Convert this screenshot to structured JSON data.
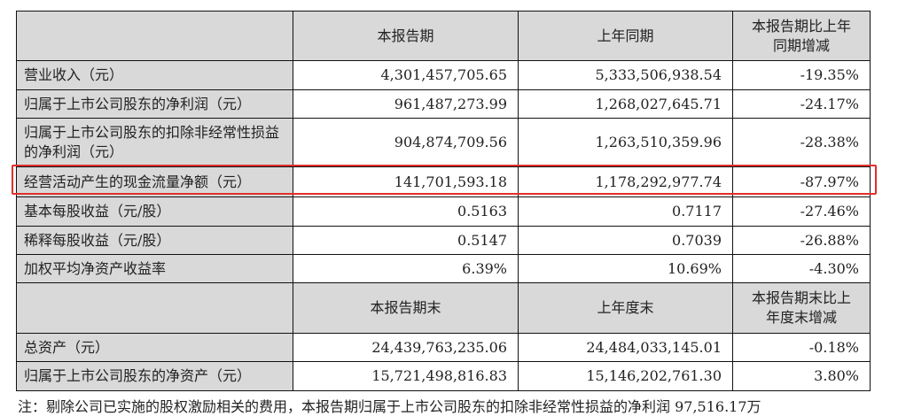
{
  "header1": {
    "blank": "",
    "col1": "本报告期",
    "col2": "上年同期",
    "col3": "本报告期比上年同期增减"
  },
  "rows1": [
    {
      "label": "营业收入（元）",
      "current": "4,301,457,705.65",
      "prior": "5,333,506,938.54",
      "change": "-19.35%"
    },
    {
      "label": "归属于上市公司股东的净利润（元）",
      "current": "961,487,273.99",
      "prior": "1,268,027,645.71",
      "change": "-24.17%"
    },
    {
      "label": "归属于上市公司股东的扣除非经常性损益的净利润（元）",
      "current": "904,874,709.56",
      "prior": "1,263,510,359.96",
      "change": "-28.38%"
    },
    {
      "label": "经营活动产生的现金流量净额（元）",
      "current": "141,701,593.18",
      "prior": "1,178,292,977.74",
      "change": "-87.97%"
    },
    {
      "label": "基本每股收益（元/股）",
      "current": "0.5163",
      "prior": "0.7117",
      "change": "-27.46%"
    },
    {
      "label": "稀释每股收益（元/股）",
      "current": "0.5147",
      "prior": "0.7039",
      "change": "-26.88%"
    },
    {
      "label": "加权平均净资产收益率",
      "current": "6.39%",
      "prior": "10.69%",
      "change": "-4.30%"
    }
  ],
  "header2": {
    "blank": "",
    "col1": "本报告期末",
    "col2": "上年度末",
    "col3": "本报告期末比上年度末增减"
  },
  "rows2": [
    {
      "label": "总资产（元）",
      "current": "24,439,763,235.06",
      "prior": "24,484,033,145.01",
      "change": "-0.18%"
    },
    {
      "label": "归属于上市公司股东的净资产（元）",
      "current": "15,721,498,816.83",
      "prior": "15,146,202,761.30",
      "change": "3.80%"
    }
  ],
  "highlight_color": "#e0302a",
  "note": "注：剔除公司已实施的股权激励相关的费用，本报告期归属于上市公司股东的扣除非经常性损益的净利润 97,516.17万"
}
